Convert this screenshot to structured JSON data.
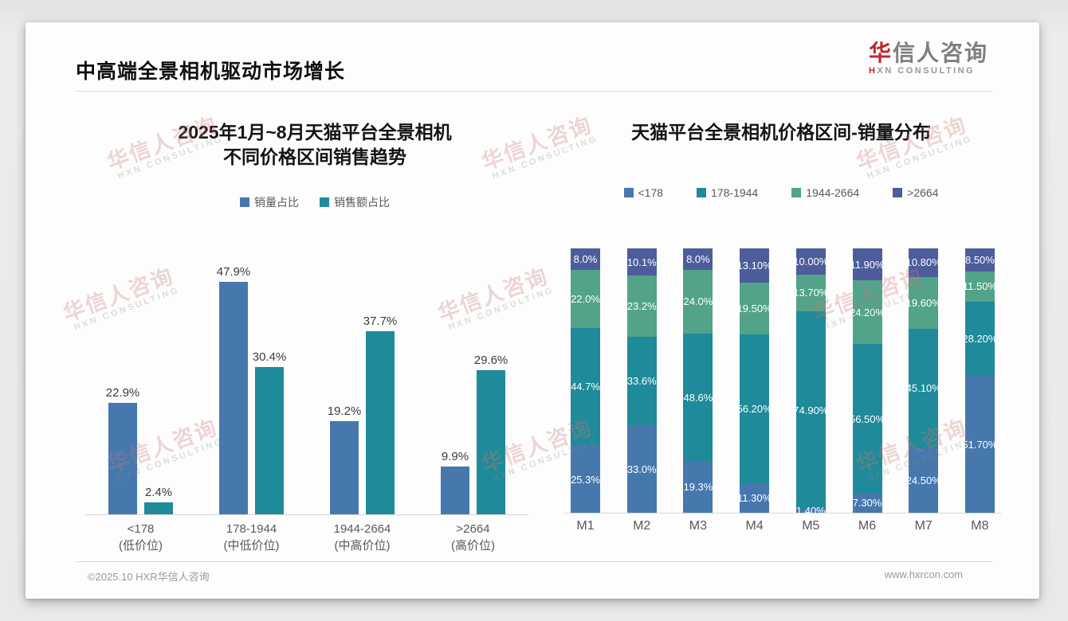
{
  "page": {
    "header": {
      "title": "中高端全景相机驱动市场增长"
    },
    "logo": {
      "cn_first": "华",
      "cn_rest": "信人咨询",
      "en_first": "H",
      "en_rest": "XN CONSULTING"
    },
    "watermark": {
      "line1": "华信人咨询",
      "line2": "HXN CONSULTING"
    },
    "footer": {
      "left": "©2025.10 HXR华信人咨询",
      "right": "www.hxrcon.com"
    }
  },
  "chart_data": [
    {
      "type": "bar",
      "title_lines": [
        "2025年1月~8月天猫平台全景相机",
        "不同价格区间销售趋势"
      ],
      "categories": [
        [
          "<178",
          "(低价位)"
        ],
        [
          "178-1944",
          "(中低价位)"
        ],
        [
          "1944-2664",
          "(中高价位)"
        ],
        [
          ">2664",
          "(高价位)"
        ]
      ],
      "series": [
        {
          "name": "销量占比",
          "color": "#4678ae",
          "values": [
            22.9,
            47.9,
            19.2,
            9.9
          ],
          "labels": [
            "22.9%",
            "47.9%",
            "19.2%",
            "9.9%"
          ]
        },
        {
          "name": "销售额占比",
          "color": "#1f8a99",
          "values": [
            2.4,
            30.4,
            37.7,
            29.6
          ],
          "labels": [
            "2.4%",
            "30.4%",
            "37.7%",
            "29.6%"
          ]
        }
      ],
      "ylim": [
        0,
        52
      ],
      "grid": false,
      "legend_position": "top",
      "value_unit": "%"
    },
    {
      "type": "stacked-bar",
      "title": "天猫平台全景相机价格区间-销量分布",
      "categories": [
        "M1",
        "M2",
        "M3",
        "M4",
        "M5",
        "M6",
        "M7",
        "M8"
      ],
      "series": [
        {
          "name": "<178",
          "color": "#4678ae",
          "values": [
            25.3,
            33.0,
            19.3,
            11.3,
            1.4,
            7.3,
            24.5,
            51.7
          ],
          "labels": [
            "25.3%",
            "33.0%",
            "19.3%",
            "11.30%",
            "1.40%",
            "7.30%",
            "24.50%",
            "51.70%"
          ]
        },
        {
          "name": "178-1944",
          "color": "#1f8a99",
          "values": [
            44.7,
            33.6,
            48.6,
            56.2,
            74.9,
            56.5,
            45.1,
            28.2
          ],
          "labels": [
            "44.7%",
            "33.6%",
            "48.6%",
            "56.20%",
            "74.90%",
            "56.50%",
            "45.10%",
            "28.20%"
          ]
        },
        {
          "name": "1944-2664",
          "color": "#52a38a",
          "values": [
            22.0,
            23.2,
            24.0,
            19.5,
            13.7,
            24.2,
            19.6,
            11.5
          ],
          "labels": [
            "22.0%",
            "23.2%",
            "24.0%",
            "19.50%",
            "13.70%",
            "24.20%",
            "19.60%",
            "11.50%"
          ]
        },
        {
          "name": ">2664",
          "color": "#4d5d9c",
          "values": [
            8.0,
            10.1,
            8.0,
            13.1,
            10.0,
            11.9,
            10.8,
            8.5
          ],
          "labels": [
            "8.0%",
            "10.1%",
            "8.0%",
            "13.10%",
            "10.00%",
            "11.90%",
            "10.80%",
            "8.50%"
          ]
        }
      ],
      "ylim": [
        0,
        100
      ],
      "grid": false,
      "legend_position": "top",
      "value_unit": "%"
    }
  ]
}
